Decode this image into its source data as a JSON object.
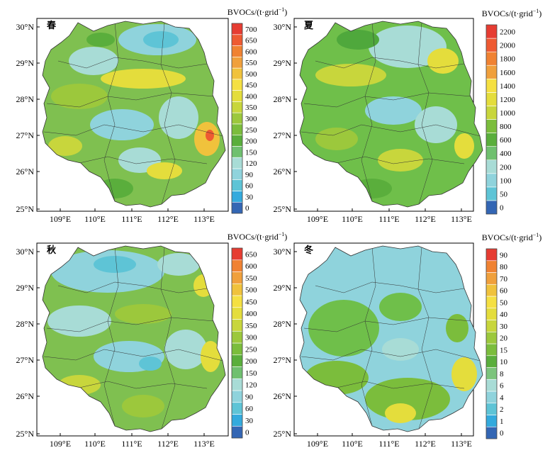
{
  "figure": {
    "lat_labels": [
      "30°N",
      "29°N",
      "28°N",
      "27°N",
      "26°N",
      "25°N"
    ],
    "lon_labels": [
      "109°E",
      "110°E",
      "111°E",
      "112°E",
      "113°E"
    ],
    "unit_text": "BVOCs/(t·grid",
    "unit_exp": "−1",
    "unit_close": ")"
  },
  "panels": [
    {
      "id": "spring",
      "season": "春",
      "colorbar": {
        "ticks": [
          "0",
          "30",
          "60",
          "90",
          "120",
          "150",
          "200",
          "250",
          "300",
          "350",
          "400",
          "450",
          "500",
          "550",
          "600",
          "650",
          "700"
        ],
        "colors": [
          "#3366b4",
          "#33aadd",
          "#5ec4d6",
          "#8fd3dc",
          "#a8dcd6",
          "#6fc06f",
          "#5aae3c",
          "#7bbd3c",
          "#9cc83c",
          "#c8d63c",
          "#e4dd3c",
          "#f5e042",
          "#f0c23c",
          "#f0a03c",
          "#f08232",
          "#ee5a32",
          "#e63c32"
        ]
      }
    },
    {
      "id": "summer",
      "season": "夏",
      "colorbar": {
        "ticks": [
          "0",
          "50",
          "100",
          "200",
          "400",
          "600",
          "800",
          "1000",
          "1200",
          "1400",
          "1600",
          "1800",
          "2000",
          "2200"
        ],
        "colors": [
          "#3366b4",
          "#5ec4d6",
          "#8fd3dc",
          "#a8dcd6",
          "#6fc06f",
          "#5aae3c",
          "#7bbd3c",
          "#c8d63c",
          "#e4dd3c",
          "#f5e042",
          "#f0a03c",
          "#f08232",
          "#ee5a32",
          "#e63c32"
        ]
      }
    },
    {
      "id": "autumn",
      "season": "秋",
      "colorbar": {
        "ticks": [
          "0",
          "30",
          "60",
          "90",
          "120",
          "150",
          "200",
          "250",
          "300",
          "350",
          "400",
          "450",
          "500",
          "550",
          "600",
          "650"
        ],
        "colors": [
          "#3366b4",
          "#33aadd",
          "#5ec4d6",
          "#8fd3dc",
          "#a8dcd6",
          "#6fc06f",
          "#5aae3c",
          "#7bbd3c",
          "#9cc83c",
          "#c8d63c",
          "#e4dd3c",
          "#f5e042",
          "#f0c23c",
          "#f0a03c",
          "#f08232",
          "#e63c32"
        ]
      }
    },
    {
      "id": "winter",
      "season": "冬",
      "colorbar": {
        "ticks": [
          "0",
          "1",
          "2",
          "4",
          "6",
          "8",
          "10",
          "15",
          "20",
          "30",
          "40",
          "50",
          "60",
          "70",
          "80",
          "90"
        ],
        "colors": [
          "#3366b4",
          "#33aadd",
          "#5ec4d6",
          "#8fd3dc",
          "#a8dcd6",
          "#7cc47c",
          "#5aae3c",
          "#7bbd3c",
          "#9cc83c",
          "#c8d63c",
          "#e4dd3c",
          "#f5e042",
          "#f0c23c",
          "#f0a03c",
          "#f08232",
          "#e63c32"
        ]
      }
    }
  ]
}
